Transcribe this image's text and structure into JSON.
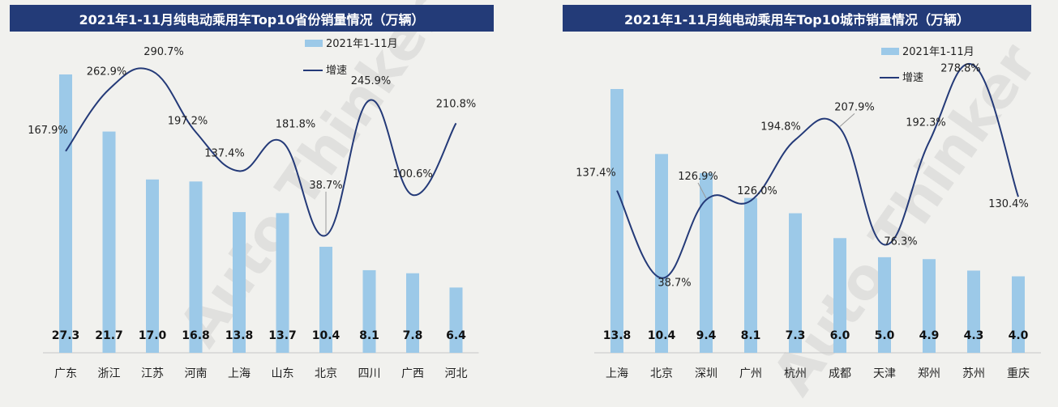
{
  "watermark": "Auto Thinker",
  "colors": {
    "title_bg": "#233b78",
    "bar": "#9cc9e8",
    "line": "#243a78"
  },
  "chart_data": [
    {
      "type": "bar",
      "title": "2021年1-11月纯电动乘用车Top10省份销量情况（万辆）",
      "legend": [
        "2021年1-11月",
        "增速"
      ],
      "legend_position": "top-right",
      "categories": [
        "广东",
        "浙江",
        "江苏",
        "河南",
        "上海",
        "山东",
        "北京",
        "四川",
        "广西",
        "河北"
      ],
      "series": [
        {
          "name": "2021年1-11月",
          "type": "bar",
          "values": [
            27.3,
            21.7,
            17.0,
            16.8,
            13.8,
            13.7,
            10.4,
            8.1,
            7.8,
            6.4
          ],
          "labels": [
            "27.3",
            "21.7",
            "17.0",
            "16.8",
            "13.8",
            "13.7",
            "10.4",
            "8.1",
            "7.8",
            "6.4"
          ]
        },
        {
          "name": "增速",
          "type": "line",
          "values": [
            167.9,
            262.9,
            290.7,
            197.2,
            137.4,
            181.8,
            38.7,
            245.9,
            100.6,
            210.8
          ],
          "labels": [
            "167.9%",
            "262.9%",
            "290.7%",
            "197.2%",
            "137.4%",
            "181.8%",
            "38.7%",
            "245.9%",
            "100.6%",
            "210.8%"
          ]
        }
      ],
      "grid": false
    },
    {
      "type": "bar",
      "title": "2021年1-11月纯电动乘用车Top10城市销量情况（万辆）",
      "legend": [
        "2021年1-11月",
        "增速"
      ],
      "legend_position": "top-right",
      "categories": [
        "上海",
        "北京",
        "深圳",
        "广州",
        "杭州",
        "成都",
        "天津",
        "郑州",
        "苏州",
        "重庆"
      ],
      "series": [
        {
          "name": "2021年1-11月",
          "type": "bar",
          "values": [
            13.8,
            10.4,
            9.4,
            8.1,
            7.3,
            6.0,
            5.0,
            4.9,
            4.3,
            4.0
          ],
          "labels": [
            "13.8",
            "10.4",
            "9.4",
            "8.1",
            "7.3",
            "6.0",
            "5.0",
            "4.9",
            "4.3",
            "4.0"
          ]
        },
        {
          "name": "增速",
          "type": "line",
          "values": [
            137.4,
            38.7,
            126.9,
            126.0,
            194.8,
            207.9,
            76.3,
            192.3,
            278.8,
            130.4
          ],
          "labels": [
            "137.4%",
            "38.7%",
            "126.9%",
            "126.0%",
            "194.8%",
            "207.9%",
            "76.3%",
            "192.3%",
            "278.8%",
            "130.4%"
          ]
        }
      ],
      "grid": false
    }
  ]
}
